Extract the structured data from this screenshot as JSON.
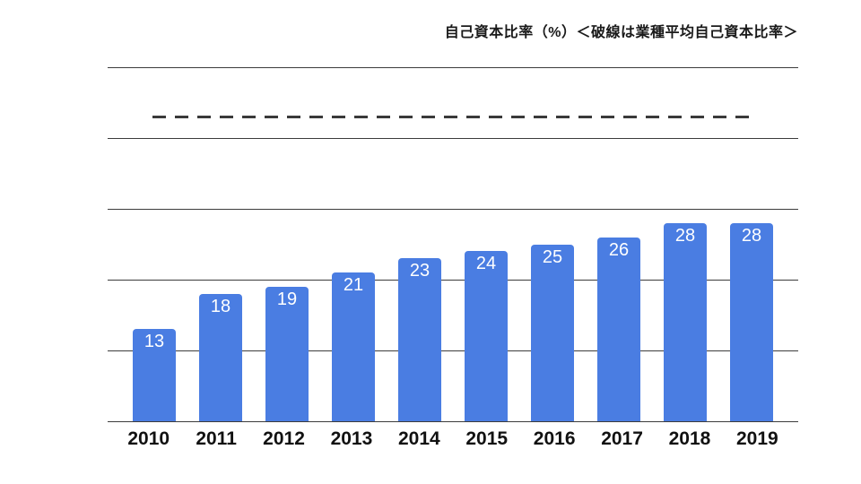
{
  "chart_data": {
    "type": "bar",
    "title": "自己資本比率（%）＜破線は業種平均自己資本比率＞",
    "categories": [
      "2010",
      "2011",
      "2012",
      "2013",
      "2014",
      "2015",
      "2016",
      "2017",
      "2018",
      "2019"
    ],
    "values": [
      13,
      18,
      19,
      21,
      23,
      24,
      25,
      26,
      28,
      28
    ],
    "average_line": {
      "value": 43,
      "style": "dashed",
      "meaning": "業種平均自己資本比率"
    },
    "ylim": [
      0,
      50
    ],
    "grid_step": 10,
    "grid": "on",
    "legend": "none",
    "xlabel": "",
    "ylabel": "",
    "colors": {
      "bar": "#4a7de2",
      "bar_label": "#ffffff",
      "gridline": "#3c3c3c",
      "average_line": "#3a3a3a",
      "background": "#ffffff",
      "axis_text": "#111111"
    }
  }
}
